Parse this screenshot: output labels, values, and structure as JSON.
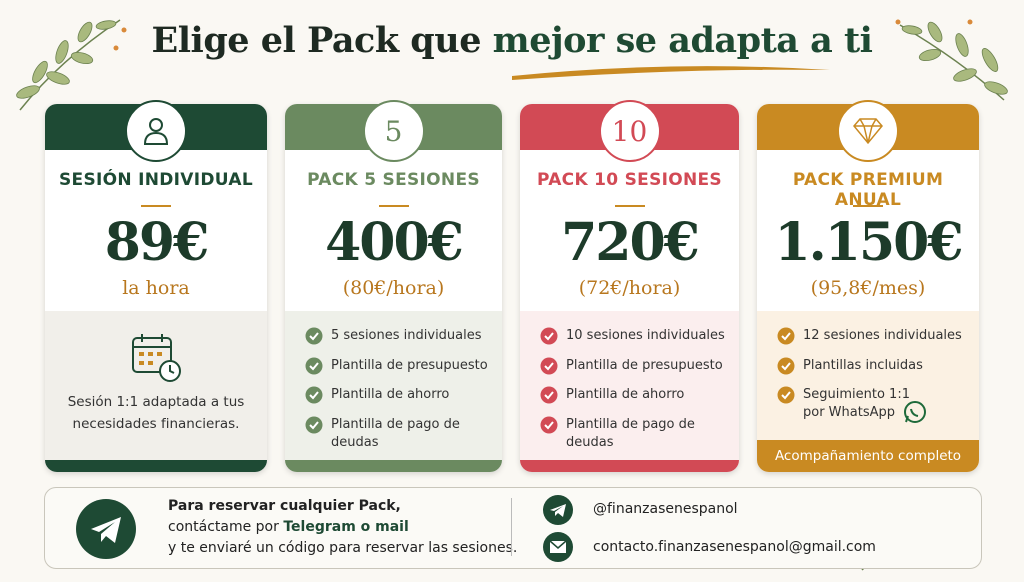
{
  "title": {
    "lead": "Elige el Pack que",
    "highlight": "mejor se adapta a ti"
  },
  "cards": [
    {
      "name": "SESIÓN INDIVIDUAL",
      "price": "89€",
      "unit": "la hora",
      "description": "Sesión 1:1 adaptada a tus necesidades financieras."
    },
    {
      "badge": "5",
      "name": "PACK 5 SESIONES",
      "price": "400€",
      "unit": "(80€/hora)",
      "features": [
        "5 sesiones individuales",
        "Plantilla de presupuesto",
        "Plantilla de ahorro",
        "Plantilla de pago de deudas"
      ]
    },
    {
      "badge": "10",
      "name": "PACK 10 SESIONES",
      "price": "720€",
      "unit": "(72€/hora)",
      "features": [
        "10 sesiones individuales",
        "Plantilla de presupuesto",
        "Plantilla de ahorro",
        "Plantilla de pago de deudas"
      ]
    },
    {
      "name": "PACK PREMIUM ANUAL",
      "price": "1.150€",
      "unit": "(95,8€/mes)",
      "features": [
        "12 sesiones individuales",
        "Plantillas incluidas",
        "Seguimiento 1:1 por WhatsApp"
      ],
      "footer": "Acompañamiento completo"
    }
  ],
  "contact": {
    "line1": "Para reservar cualquier Pack,",
    "line2_lead": "contáctame por",
    "line2_highlight": "Telegram o mail",
    "line3": "y te enviaré un código para reservar las sesiones.",
    "telegram": "@finanzasenespanol",
    "email": "contacto.finanzasenespanol@gmail.com"
  }
}
